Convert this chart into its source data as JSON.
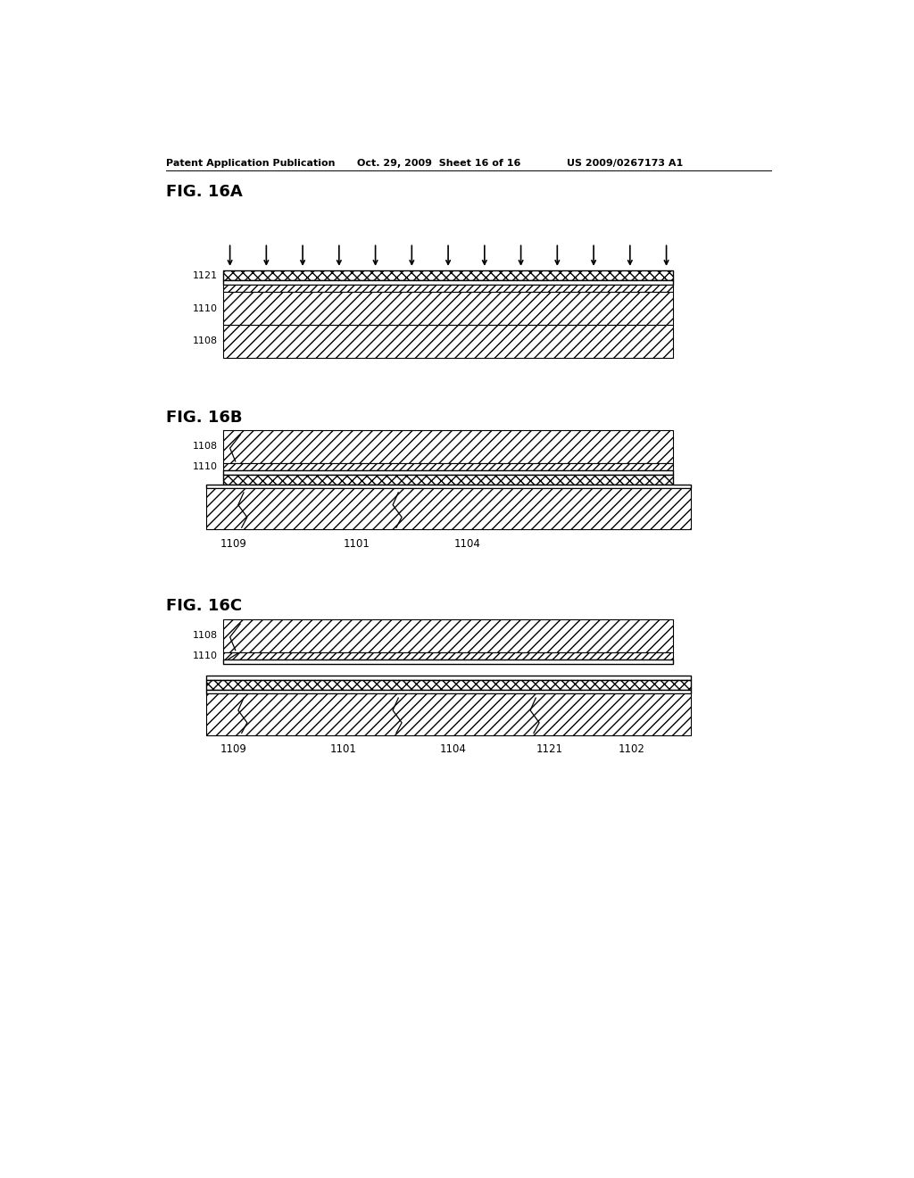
{
  "bg_color": "#ffffff",
  "header_left": "Patent Application Publication",
  "header_mid": "Oct. 29, 2009  Sheet 16 of 16",
  "header_right": "US 2009/0267173 A1",
  "fig16a_label": "FIG. 16A",
  "fig16b_label": "FIG. 16B",
  "fig16c_label": "FIG. 16C",
  "page_width": 10.24,
  "page_height": 13.2
}
